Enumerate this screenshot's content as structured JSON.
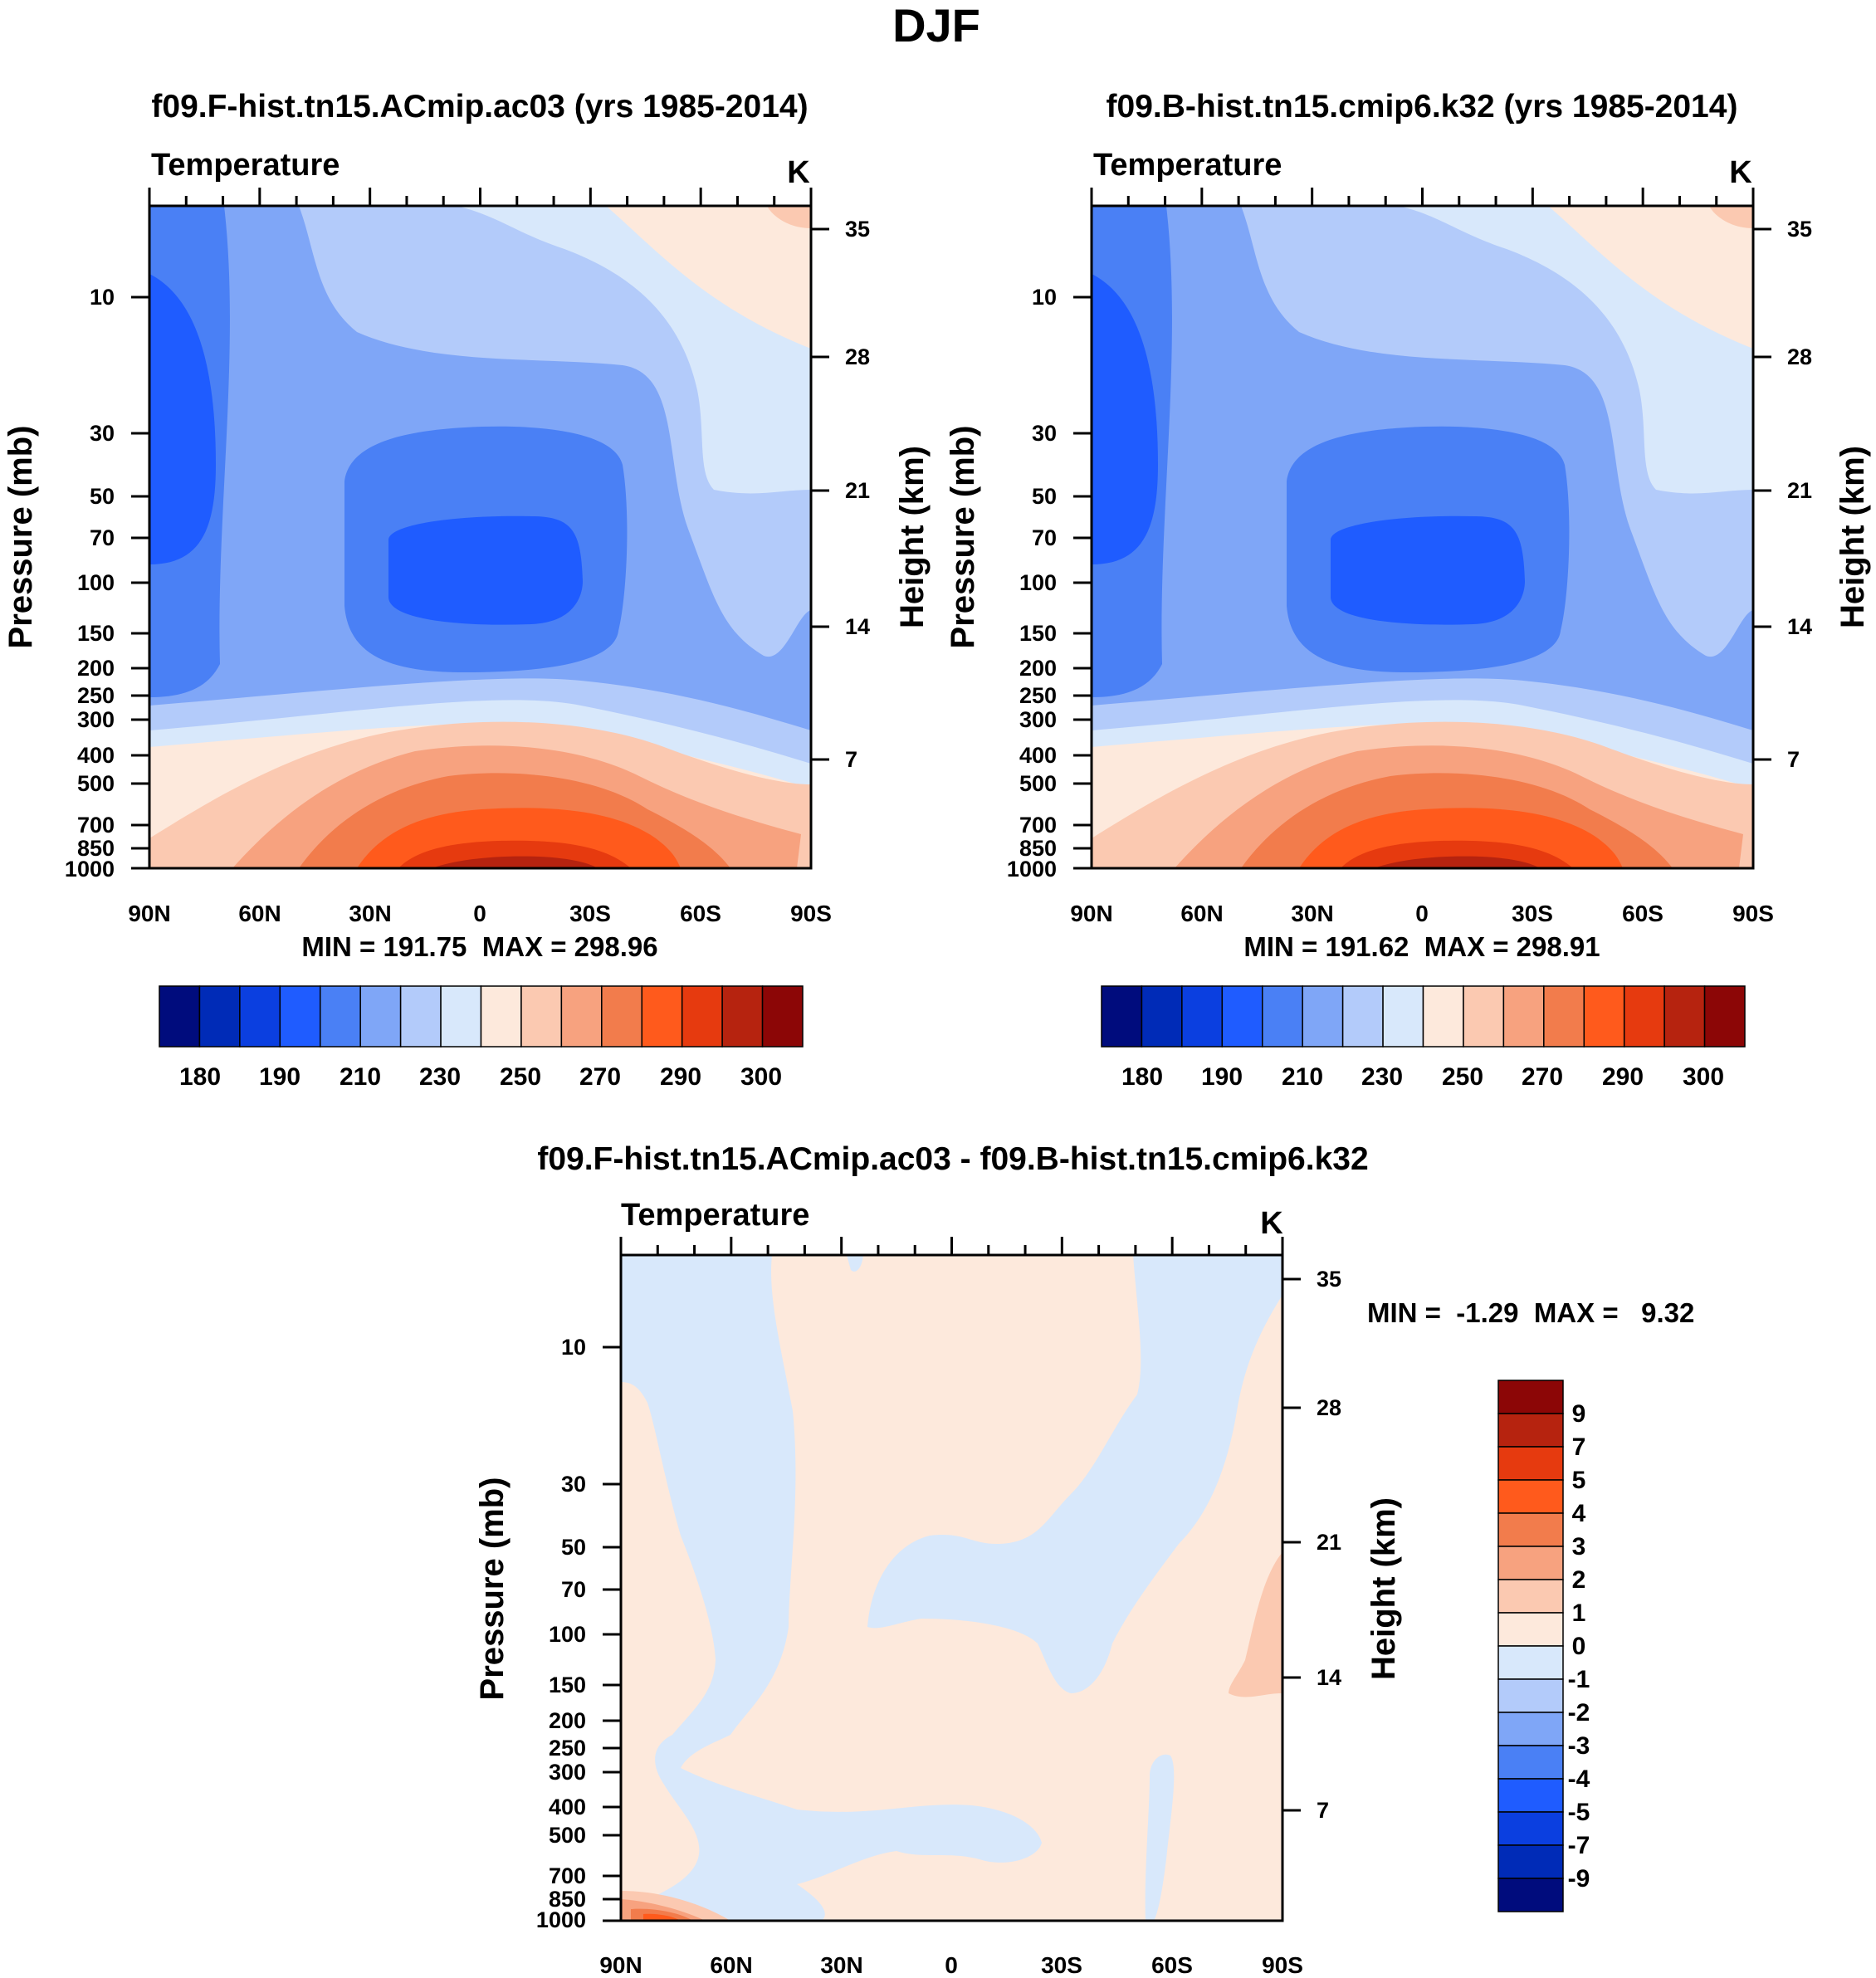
{
  "page": {
    "title": "DJF"
  },
  "colors": {
    "abs_palette": [
      "#000c7d",
      "#002bb7",
      "#0b3fe0",
      "#1f5cff",
      "#4a80f5",
      "#7fa6f7",
      "#b3cbfa",
      "#d8e8fb",
      "#fde9dc",
      "#fbc9b1",
      "#f7a27f",
      "#f27c4c",
      "#ff5a1c",
      "#e63a0f",
      "#b6230f",
      "#8c0606"
    ],
    "diff_palette": [
      "#000c7d",
      "#002bb7",
      "#0b3fe0",
      "#1f5cff",
      "#4a80f5",
      "#7fa6f7",
      "#b3cbfa",
      "#d8e8fb",
      "#fde9dc",
      "#fbc9b1",
      "#f7a27f",
      "#f27c4c",
      "#ff5a1c",
      "#e63a0f",
      "#b6230f",
      "#8c0606"
    ]
  },
  "chart_data": [
    {
      "type": "contour",
      "title": "f09.F-hist.tn15.ACmip.ac03 (yrs 1985-2014)",
      "left_label": "Temperature",
      "units": "K",
      "xlabel": "",
      "ylabel": "Pressure (mb)",
      "y2label": "Height (km)",
      "x_tick_labels": [
        "90N",
        "60N",
        "30N",
        "0",
        "30S",
        "60S",
        "90S"
      ],
      "y_tick_labels": [
        "10",
        "30",
        "50",
        "70",
        "100",
        "150",
        "200",
        "250",
        "300",
        "400",
        "500",
        "700",
        "850",
        "1000"
      ],
      "y2_tick_labels": [
        "35",
        "28",
        "21",
        "14",
        "7"
      ],
      "stats": "MIN = 191.75  MAX = 298.96",
      "min": 191.75,
      "max": 298.96,
      "colorbar_labels": [
        "180",
        "190",
        "210",
        "230",
        "250",
        "270",
        "290",
        "300"
      ],
      "levels": [
        180,
        185,
        190,
        200,
        210,
        220,
        230,
        240,
        250,
        260,
        270,
        280,
        290,
        295,
        300
      ]
    },
    {
      "type": "contour",
      "title": "f09.B-hist.tn15.cmip6.k32 (yrs 1985-2014)",
      "left_label": "Temperature",
      "units": "K",
      "xlabel": "",
      "ylabel": "Pressure (mb)",
      "y2label": "Height (km)",
      "x_tick_labels": [
        "90N",
        "60N",
        "30N",
        "0",
        "30S",
        "60S",
        "90S"
      ],
      "y_tick_labels": [
        "10",
        "30",
        "50",
        "70",
        "100",
        "150",
        "200",
        "250",
        "300",
        "400",
        "500",
        "700",
        "850",
        "1000"
      ],
      "y2_tick_labels": [
        "35",
        "28",
        "21",
        "14",
        "7"
      ],
      "stats": "MIN = 191.62  MAX = 298.91",
      "min": 191.62,
      "max": 298.91,
      "colorbar_labels": [
        "180",
        "190",
        "210",
        "230",
        "250",
        "270",
        "290",
        "300"
      ],
      "levels": [
        180,
        185,
        190,
        200,
        210,
        220,
        230,
        240,
        250,
        260,
        270,
        280,
        290,
        295,
        300
      ]
    },
    {
      "type": "contour",
      "title": "f09.F-hist.tn15.ACmip.ac03 - f09.B-hist.tn15.cmip6.k32",
      "left_label": "Temperature",
      "units": "K",
      "xlabel": "",
      "ylabel": "Pressure (mb)",
      "y2label": "Height (km)",
      "x_tick_labels": [
        "90N",
        "60N",
        "30N",
        "0",
        "30S",
        "60S",
        "90S"
      ],
      "y_tick_labels": [
        "10",
        "30",
        "50",
        "70",
        "100",
        "150",
        "200",
        "250",
        "300",
        "400",
        "500",
        "700",
        "850",
        "1000"
      ],
      "y2_tick_labels": [
        "35",
        "28",
        "21",
        "14",
        "7"
      ],
      "stats": "MIN =  -1.29  MAX =   9.32",
      "min": -1.29,
      "max": 9.32,
      "colorbar_labels": [
        "9",
        "7",
        "5",
        "4",
        "3",
        "2",
        "1",
        "0",
        "-1",
        "-2",
        "-3",
        "-4",
        "-5",
        "-7",
        "-9"
      ],
      "levels": [
        -9,
        -7,
        -5,
        -4,
        -3,
        -2,
        -1,
        0,
        1,
        2,
        3,
        4,
        5,
        7,
        9
      ]
    }
  ]
}
